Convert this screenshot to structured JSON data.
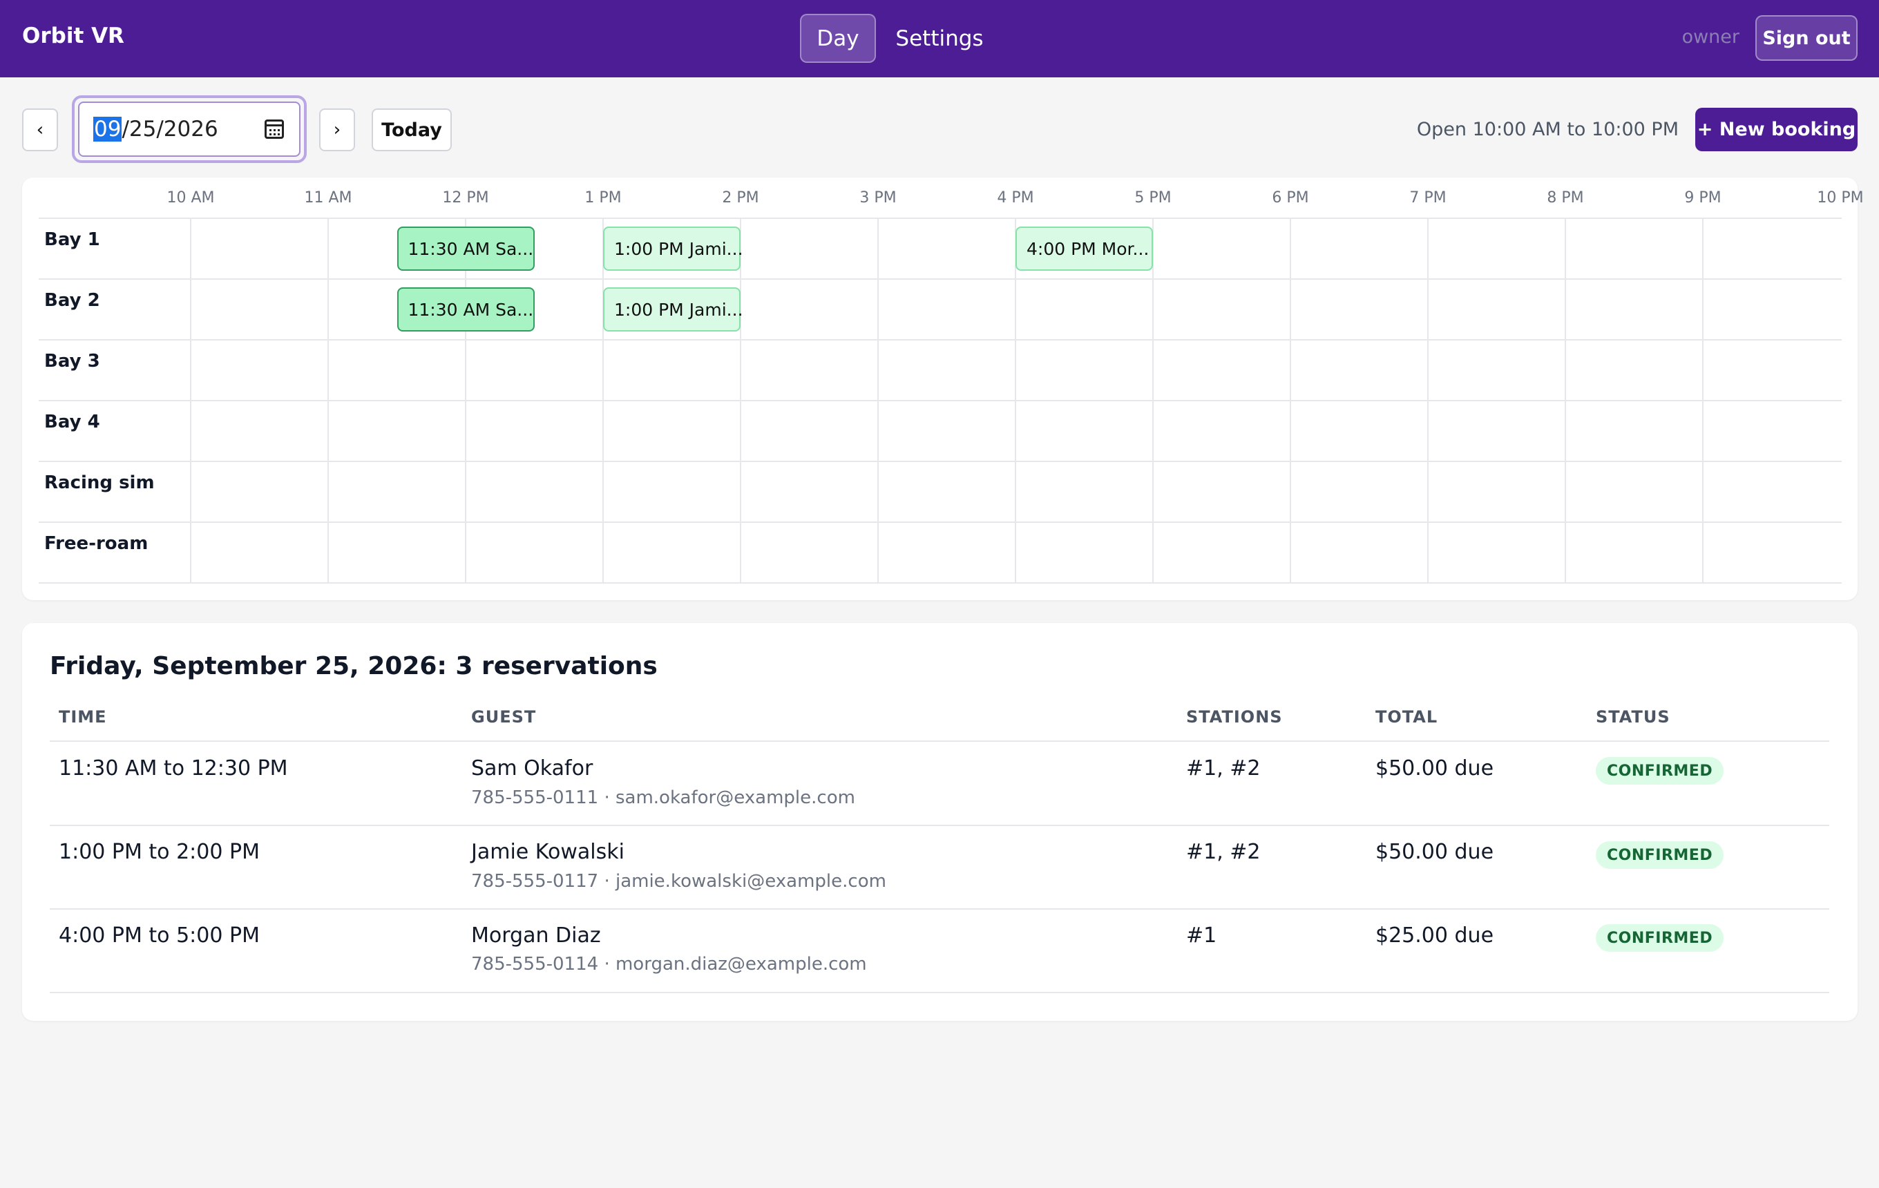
{
  "header": {
    "brand": "Orbit VR",
    "nav": [
      "Day",
      "Settings"
    ],
    "role": "owner",
    "sign_out": "Sign out"
  },
  "toolbar": {
    "prev": "‹",
    "next": "›",
    "date_month": "09",
    "date_rest": "/25/2026",
    "today": "Today",
    "open_hours": "Open 10:00 AM to 10:00 PM",
    "new_booking": "+ New booking"
  },
  "timeline": {
    "hours": [
      "10 AM",
      "11 AM",
      "12 PM",
      "1 PM",
      "2 PM",
      "3 PM",
      "4 PM",
      "5 PM",
      "6 PM",
      "7 PM",
      "8 PM",
      "9 PM",
      "10 PM"
    ],
    "rows": [
      "Bay 1",
      "Bay 2",
      "Bay 3",
      "Bay 4",
      "Racing sim",
      "Free-roam"
    ],
    "bookings": [
      {
        "row": 0,
        "label": "11:30 AM Sa...",
        "style": "strong"
      },
      {
        "row": 0,
        "label": "1:00 PM Jami...",
        "style": "light"
      },
      {
        "row": 0,
        "label": "4:00 PM Mor...",
        "style": "light"
      },
      {
        "row": 1,
        "label": "11:30 AM Sa...",
        "style": "strong"
      },
      {
        "row": 1,
        "label": "1:00 PM Jami...",
        "style": "light"
      }
    ]
  },
  "reservations": {
    "title": "Friday, September 25, 2026: 3 reservations",
    "columns": [
      "TIME",
      "GUEST",
      "STATIONS",
      "TOTAL",
      "STATUS"
    ],
    "rows": [
      {
        "time": "11:30 AM to 12:30 PM",
        "guest": "Sam Okafor",
        "contact": "785-555-0111 · sam.okafor@example.com",
        "stations": "#1, #2",
        "total": "$50.00 due",
        "status": "CONFIRMED"
      },
      {
        "time": "1:00 PM to 2:00 PM",
        "guest": "Jamie Kowalski",
        "contact": "785-555-0117 · jamie.kowalski@example.com",
        "stations": "#1, #2",
        "total": "$50.00 due",
        "status": "CONFIRMED"
      },
      {
        "time": "4:00 PM to 5:00 PM",
        "guest": "Morgan Diaz",
        "contact": "785-555-0114 · morgan.diaz@example.com",
        "stations": "#1",
        "total": "$25.00 due",
        "status": "CONFIRMED"
      }
    ]
  },
  "colors": {
    "brand": "#4c1d95",
    "booking_strong": "#a7f3c3",
    "booking_light": "#d9fbe5",
    "status_confirmed": "#dcfce7"
  }
}
